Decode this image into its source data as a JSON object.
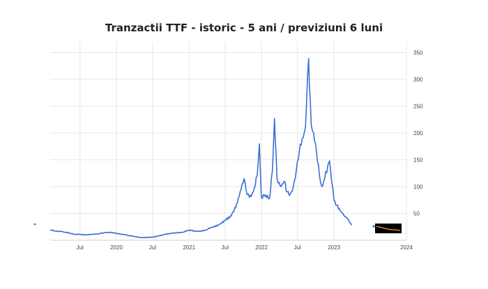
{
  "title": "Tranzactii TTF - istoric - 5 ani / previziuni 6 luni",
  "colors": {
    "series": "#3a6fd1",
    "forecast": "#f0a13c",
    "forecast_bg": "#000000",
    "grid": "#e6e6e6"
  },
  "chart_data": {
    "type": "line",
    "title": "Tranzactii TTF - istoric - 5 ani / previziuni 6 luni",
    "xlabel": "",
    "ylabel": "",
    "xlim": [
      "2019-02-01",
      "2024-01-01"
    ],
    "ylim": [
      0,
      370
    ],
    "y_ticks": [
      50,
      100,
      150,
      200,
      250,
      300,
      350
    ],
    "x_ticks": [
      {
        "date": "2019-07-01",
        "label": "Jul"
      },
      {
        "date": "2020-01-01",
        "label": "2020"
      },
      {
        "date": "2020-07-01",
        "label": "Jul"
      },
      {
        "date": "2021-01-01",
        "label": "2021"
      },
      {
        "date": "2021-07-01",
        "label": "Jul"
      },
      {
        "date": "2022-01-01",
        "label": "2022"
      },
      {
        "date": "2022-07-01",
        "label": "Jul"
      },
      {
        "date": "2023-01-01",
        "label": "2023"
      },
      {
        "date": "2024-01-01",
        "label": "2024"
      }
    ],
    "grid": true,
    "series": [
      {
        "points": [
          [
            "2019-02-01",
            19
          ],
          [
            "2019-03-01",
            17
          ],
          [
            "2019-04-01",
            16
          ],
          [
            "2019-05-01",
            14
          ],
          [
            "2019-06-01",
            11
          ],
          [
            "2019-07-01",
            11
          ],
          [
            "2019-08-01",
            10
          ],
          [
            "2019-09-01",
            11
          ],
          [
            "2019-10-01",
            12
          ],
          [
            "2019-11-01",
            14
          ],
          [
            "2019-12-01",
            15
          ],
          [
            "2020-01-01",
            13
          ],
          [
            "2020-02-01",
            11
          ],
          [
            "2020-03-01",
            9
          ],
          [
            "2020-04-01",
            7
          ],
          [
            "2020-05-01",
            5
          ],
          [
            "2020-06-01",
            5
          ],
          [
            "2020-07-01",
            6
          ],
          [
            "2020-08-01",
            8
          ],
          [
            "2020-09-01",
            11
          ],
          [
            "2020-10-01",
            13
          ],
          [
            "2020-11-01",
            14
          ],
          [
            "2020-12-01",
            15
          ],
          [
            "2021-01-01",
            19
          ],
          [
            "2021-02-01",
            17
          ],
          [
            "2021-03-01",
            17
          ],
          [
            "2021-04-01",
            20
          ],
          [
            "2021-05-01",
            25
          ],
          [
            "2021-06-01",
            29
          ],
          [
            "2021-07-01",
            37
          ],
          [
            "2021-08-01",
            45
          ],
          [
            "2021-09-01",
            70
          ],
          [
            "2021-09-20",
            95
          ],
          [
            "2021-10-05",
            115
          ],
          [
            "2021-10-20",
            85
          ],
          [
            "2021-11-01",
            80
          ],
          [
            "2021-11-20",
            90
          ],
          [
            "2021-12-10",
            120
          ],
          [
            "2021-12-21",
            180
          ],
          [
            "2021-12-31",
            80
          ],
          [
            "2022-01-20",
            85
          ],
          [
            "2022-02-10",
            78
          ],
          [
            "2022-02-25",
            130
          ],
          [
            "2022-03-07",
            227
          ],
          [
            "2022-03-20",
            115
          ],
          [
            "2022-04-10",
            100
          ],
          [
            "2022-04-25",
            110
          ],
          [
            "2022-05-10",
            90
          ],
          [
            "2022-05-25",
            85
          ],
          [
            "2022-06-10",
            100
          ],
          [
            "2022-06-25",
            130
          ],
          [
            "2022-07-10",
            165
          ],
          [
            "2022-07-25",
            190
          ],
          [
            "2022-08-10",
            210
          ],
          [
            "2022-08-26",
            339
          ],
          [
            "2022-09-08",
            215
          ],
          [
            "2022-09-20",
            200
          ],
          [
            "2022-10-05",
            165
          ],
          [
            "2022-10-20",
            120
          ],
          [
            "2022-11-01",
            100
          ],
          [
            "2022-11-15",
            115
          ],
          [
            "2022-12-01",
            140
          ],
          [
            "2022-12-10",
            148
          ],
          [
            "2022-12-20",
            110
          ],
          [
            "2023-01-01",
            75
          ],
          [
            "2023-01-15",
            65
          ],
          [
            "2023-02-01",
            55
          ],
          [
            "2023-02-15",
            50
          ],
          [
            "2023-03-01",
            44
          ],
          [
            "2023-03-15",
            38
          ],
          [
            "2023-03-31",
            28
          ]
        ]
      }
    ]
  }
}
